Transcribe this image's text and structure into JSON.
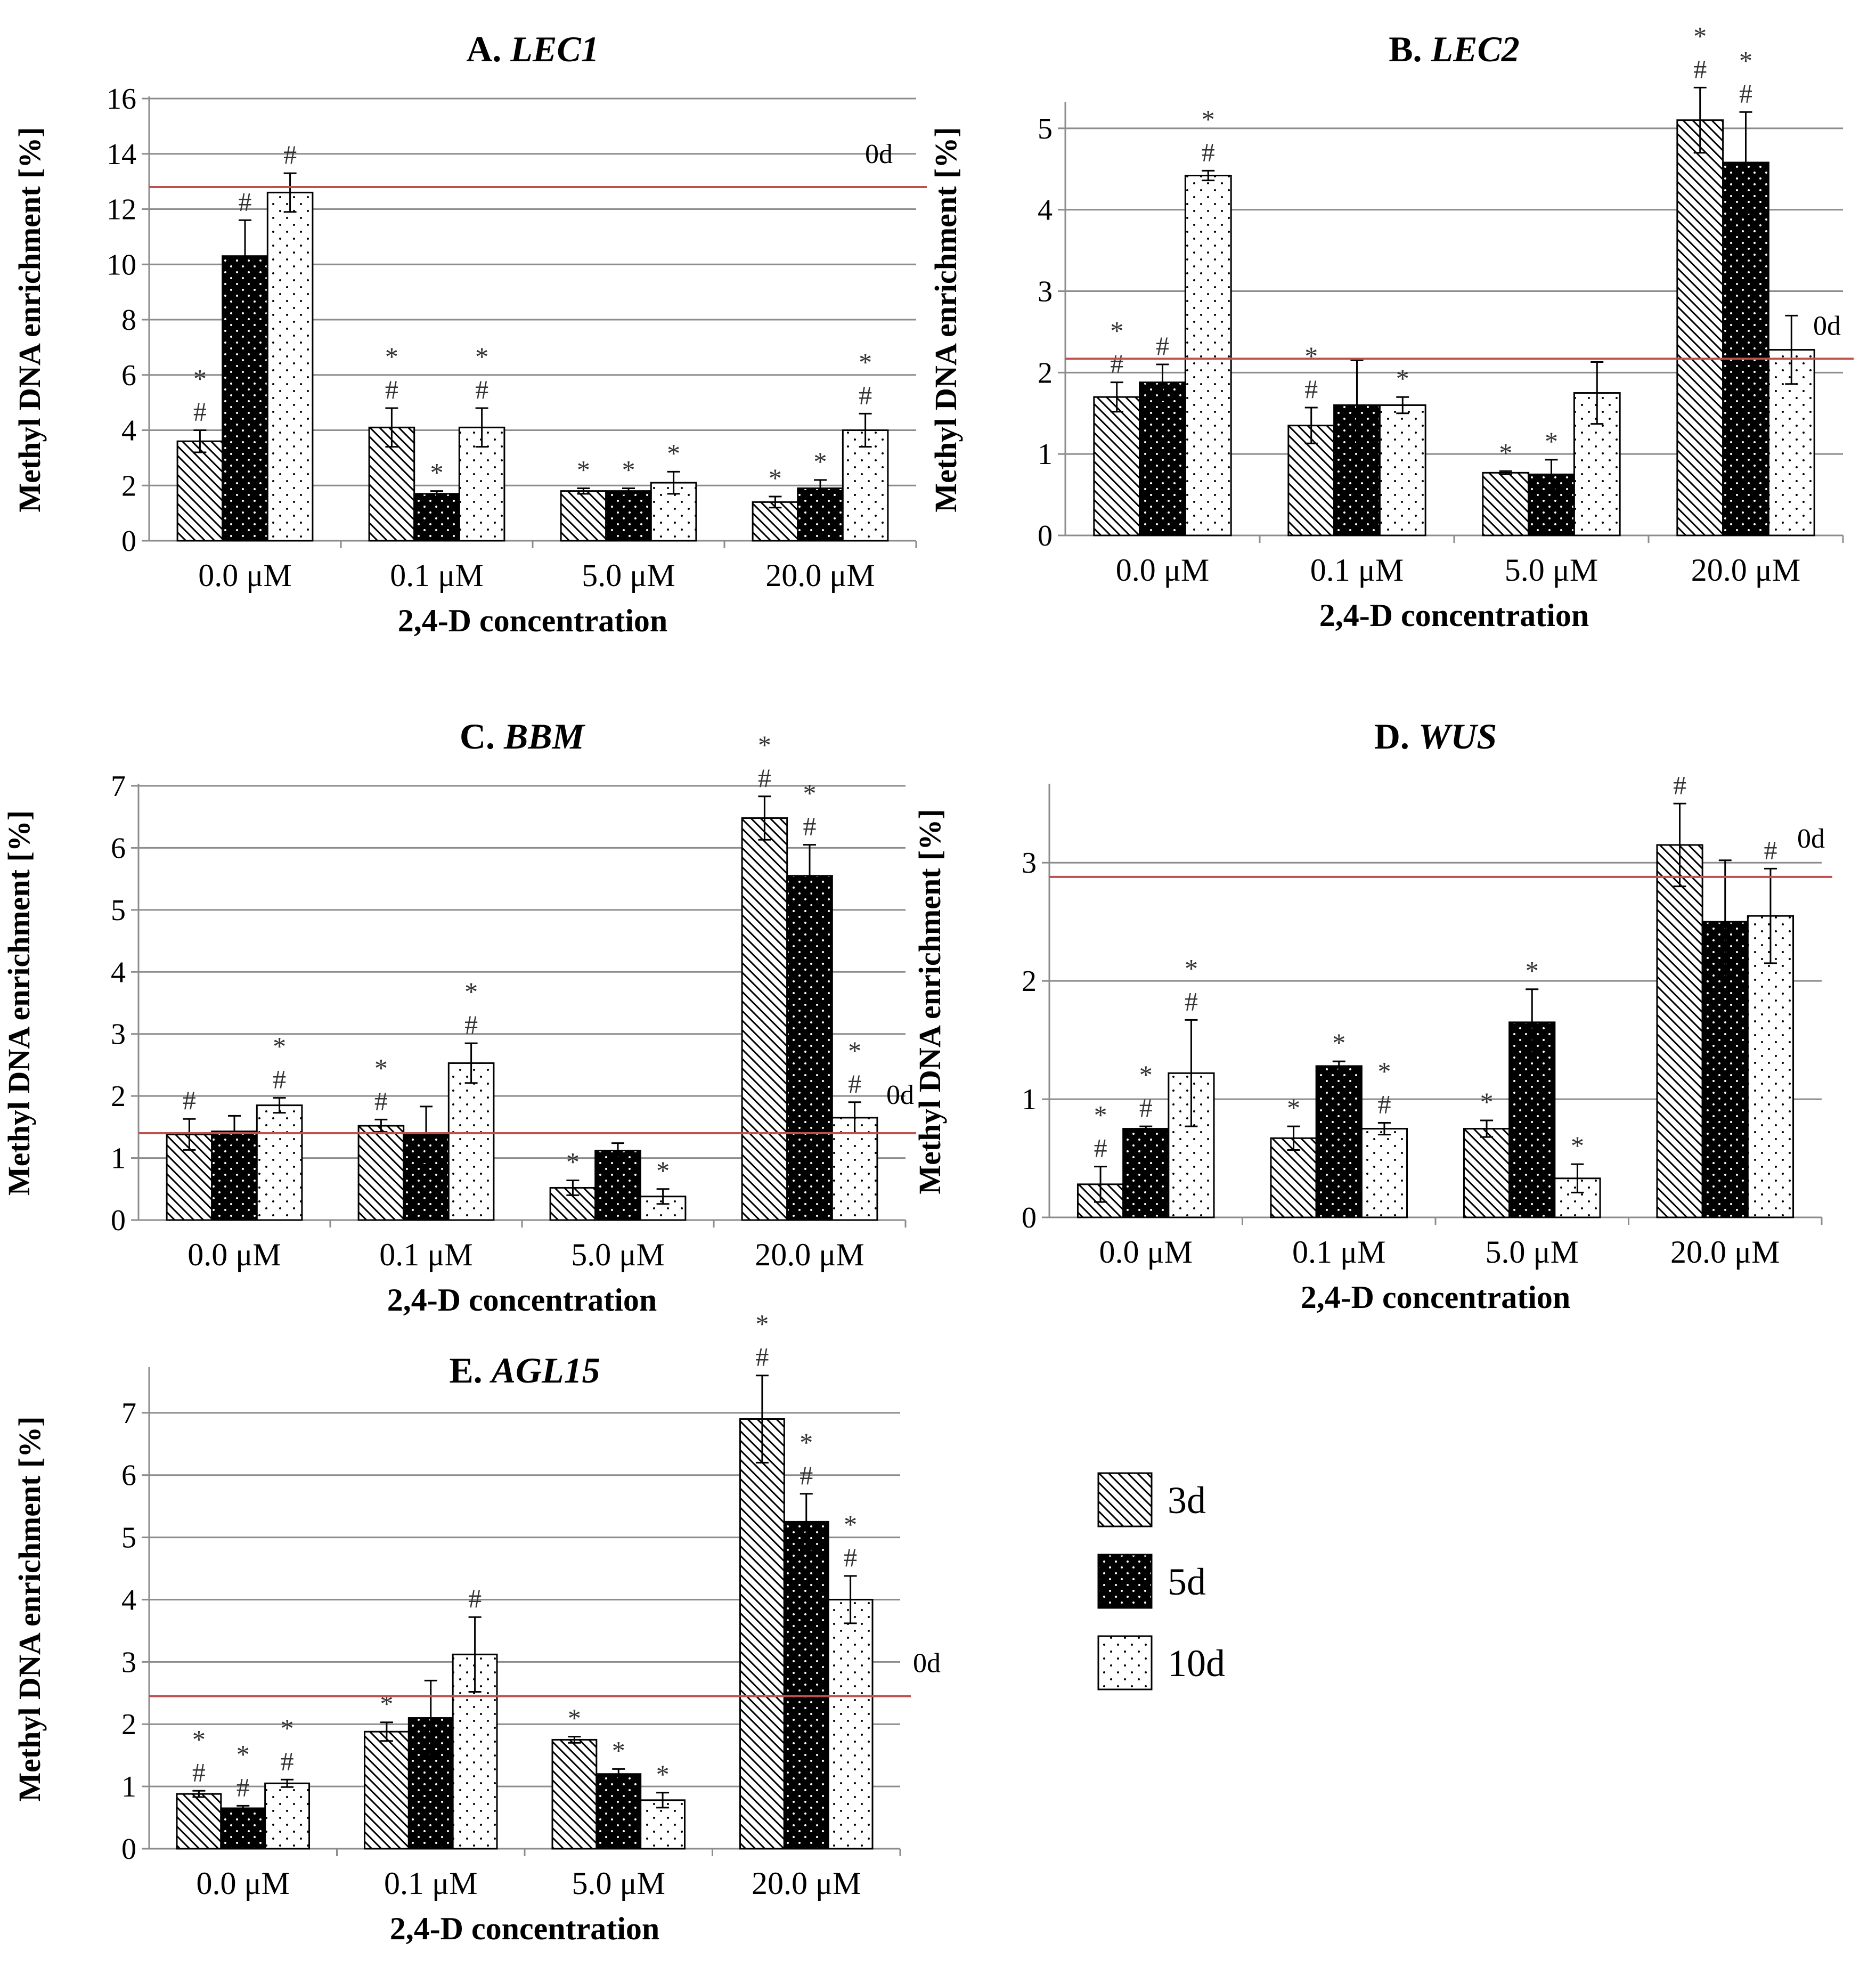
{
  "figure": {
    "background": "#ffffff",
    "colors": {
      "grid": "#8c8c8c",
      "axis": "#8c8c8c",
      "reference_line": "#c0504d",
      "bar_edge": "#000000",
      "bar_5d": "#000000"
    }
  },
  "legend": {
    "items": [
      {
        "key": "3d",
        "label": "3d",
        "pattern": "diagonal-hatch"
      },
      {
        "key": "5d",
        "label": "5d",
        "pattern": "black-dotted"
      },
      {
        "key": "10d",
        "label": "10d",
        "pattern": "white-dotted"
      }
    ]
  },
  "chart_data": [
    {
      "type": "bar",
      "panel": "A.",
      "gene": "LEC1",
      "ylabel": "Methyl DNA enrichment [%]",
      "xlabel": "2,4-D concentration",
      "categories": [
        "0.0 μM",
        "0.1  μM",
        "5.0  μM",
        "20.0  μM"
      ],
      "ylim": [
        0,
        16
      ],
      "yticks": [
        0,
        2,
        4,
        6,
        8,
        10,
        12,
        14,
        16
      ],
      "grid": true,
      "reference": {
        "label": "0d",
        "value": 12.8
      },
      "series": [
        {
          "name": "3d",
          "values": [
            3.6,
            4.1,
            1.8,
            1.4
          ],
          "errors": [
            0.4,
            0.7,
            0.1,
            0.2
          ],
          "marks": [
            "*#",
            "*#",
            "*",
            "*"
          ]
        },
        {
          "name": "5d",
          "values": [
            10.3,
            1.7,
            1.8,
            1.9
          ],
          "errors": [
            1.3,
            0.1,
            0.1,
            0.3
          ],
          "marks": [
            "#",
            "*",
            "*",
            "*"
          ]
        },
        {
          "name": "10d",
          "values": [
            12.6,
            4.1,
            2.1,
            4.0
          ],
          "errors": [
            0.7,
            0.7,
            0.4,
            0.6
          ],
          "marks": [
            "#",
            "*#",
            "*",
            "*#"
          ]
        }
      ]
    },
    {
      "type": "bar",
      "panel": "B.",
      "gene": "LEC2",
      "ylabel": "Methyl DNA enrichment [%]",
      "xlabel": "2,4-D concentration",
      "categories": [
        "0.0 μM",
        "0.1  μM",
        "5.0  μM",
        "20.0  μM"
      ],
      "ylim": [
        0,
        5.3
      ],
      "yticks": [
        0,
        1,
        2,
        3,
        4,
        5
      ],
      "grid": true,
      "reference": {
        "label": "0d",
        "value": 2.17
      },
      "series": [
        {
          "name": "3d",
          "values": [
            1.7,
            1.35,
            0.77,
            5.1
          ],
          "errors": [
            0.18,
            0.22,
            0.02,
            0.4
          ],
          "marks": [
            "*#",
            "*#",
            "*",
            "*#"
          ]
        },
        {
          "name": "5d",
          "values": [
            1.88,
            1.6,
            0.75,
            4.58
          ],
          "errors": [
            0.22,
            0.55,
            0.18,
            0.62
          ],
          "marks": [
            "#",
            "",
            "*",
            "*#"
          ]
        },
        {
          "name": "10d",
          "values": [
            4.42,
            1.6,
            1.75,
            2.28
          ],
          "errors": [
            0.06,
            0.1,
            0.38,
            0.42
          ],
          "marks": [
            "*#",
            "*",
            "",
            ""
          ]
        }
      ]
    },
    {
      "type": "bar",
      "panel": "C.",
      "gene": "BBM",
      "ylabel": "Methyl DNA enrichment [%]",
      "xlabel": "2,4-D concentration",
      "categories": [
        "0.0  μM",
        "0.1  μM",
        "5.0  μM",
        "20.0  μM"
      ],
      "ylim": [
        0,
        7
      ],
      "yticks": [
        0,
        1,
        2,
        3,
        4,
        5,
        6,
        7
      ],
      "grid": true,
      "reference": {
        "label": "0d",
        "value": 1.4
      },
      "series": [
        {
          "name": "3d",
          "values": [
            1.38,
            1.52,
            0.52,
            6.48
          ],
          "errors": [
            0.25,
            0.1,
            0.12,
            0.35
          ],
          "marks": [
            "#",
            "*#",
            "*",
            "*#"
          ]
        },
        {
          "name": "5d",
          "values": [
            1.43,
            1.38,
            1.12,
            5.55
          ],
          "errors": [
            0.25,
            0.45,
            0.12,
            0.5
          ],
          "marks": [
            "",
            "",
            "",
            "*#"
          ]
        },
        {
          "name": "10d",
          "values": [
            1.85,
            2.53,
            0.38,
            1.65
          ],
          "errors": [
            0.12,
            0.32,
            0.12,
            0.25
          ],
          "marks": [
            "*#",
            "*#",
            "*",
            "*#"
          ]
        }
      ]
    },
    {
      "type": "bar",
      "panel": "D.",
      "gene": "WUS",
      "ylabel": "Methyl DNA enrichment [%]",
      "xlabel": "2,4-D concentration",
      "categories": [
        "0.0  μM",
        "0.1  μM",
        "5.0  μM",
        "20.0  μM"
      ],
      "ylim": [
        0,
        3.65
      ],
      "yticks": [
        0,
        1,
        2,
        3
      ],
      "grid": true,
      "reference": {
        "label": "0d",
        "value": 2.88
      },
      "series": [
        {
          "name": "3d",
          "values": [
            0.28,
            0.67,
            0.75,
            3.15
          ],
          "errors": [
            0.15,
            0.1,
            0.07,
            0.35
          ],
          "marks": [
            "*#",
            "*",
            "*",
            "#"
          ]
        },
        {
          "name": "5d",
          "values": [
            0.75,
            1.28,
            1.65,
            2.5
          ],
          "errors": [
            0.02,
            0.04,
            0.28,
            0.52
          ],
          "marks": [
            "*#",
            "*",
            "*",
            ""
          ]
        },
        {
          "name": "10d",
          "values": [
            1.22,
            0.75,
            0.33,
            2.55
          ],
          "errors": [
            0.45,
            0.05,
            0.12,
            0.4
          ],
          "marks": [
            "*#",
            "*#",
            "*",
            "#"
          ]
        }
      ]
    },
    {
      "type": "bar",
      "panel": "E.",
      "gene": "AGL15",
      "ylabel": "Methyl DNA enrichment [%]",
      "xlabel": "2,4-D concentration",
      "categories": [
        "0.0  μM",
        "0.1  μM",
        "5.0  μM",
        "20.0  μM"
      ],
      "ylim": [
        0,
        7.7
      ],
      "yticks": [
        0,
        1,
        2,
        3,
        4,
        5,
        6,
        7
      ],
      "grid": true,
      "reference": {
        "label": "0d",
        "value": 2.45
      },
      "series": [
        {
          "name": "3d",
          "values": [
            0.88,
            1.88,
            1.75,
            6.9
          ],
          "errors": [
            0.05,
            0.15,
            0.05,
            0.7
          ],
          "marks": [
            "*#",
            "*",
            "*",
            "*#"
          ]
        },
        {
          "name": "5d",
          "values": [
            0.65,
            2.1,
            1.2,
            5.25
          ],
          "errors": [
            0.04,
            0.6,
            0.08,
            0.45
          ],
          "marks": [
            "*#",
            "",
            "*",
            "*#"
          ]
        },
        {
          "name": "10d",
          "values": [
            1.05,
            3.12,
            0.78,
            4.0
          ],
          "errors": [
            0.06,
            0.6,
            0.12,
            0.38
          ],
          "marks": [
            "*#",
            "#",
            "*",
            "*#"
          ]
        }
      ]
    }
  ]
}
